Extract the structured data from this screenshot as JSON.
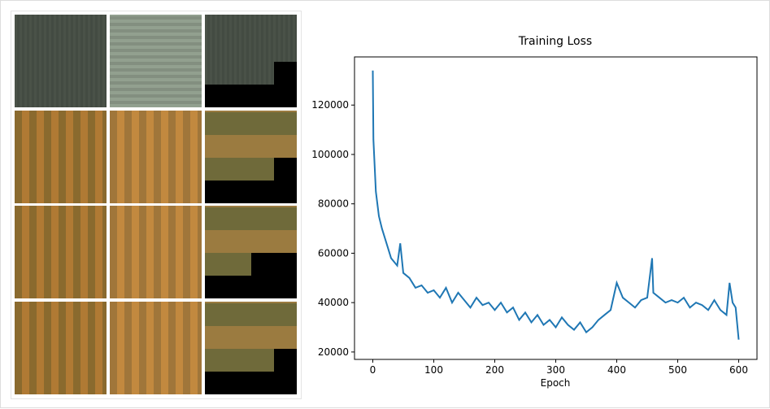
{
  "chart_data": {
    "type": "line",
    "title": "Training Loss",
    "x_label": "Epoch",
    "x": [
      0,
      1,
      5,
      10,
      15,
      20,
      25,
      30,
      40,
      45,
      50,
      60,
      70,
      80,
      90,
      100,
      110,
      120,
      130,
      140,
      150,
      160,
      170,
      180,
      190,
      200,
      210,
      220,
      230,
      240,
      250,
      260,
      270,
      280,
      290,
      300,
      310,
      320,
      330,
      340,
      350,
      360,
      370,
      380,
      390,
      400,
      410,
      420,
      430,
      440,
      450,
      458,
      460,
      470,
      480,
      490,
      500,
      510,
      520,
      530,
      540,
      550,
      560,
      570,
      580,
      585,
      590,
      595,
      600
    ],
    "series": [
      {
        "name": "loss",
        "color": "#1f77b4",
        "values": [
          134000,
          106000,
          85000,
          75000,
          70000,
          66000,
          62000,
          58000,
          55000,
          64000,
          52000,
          50000,
          46000,
          47000,
          44000,
          45000,
          42000,
          46000,
          40000,
          44000,
          41000,
          38000,
          42000,
          39000,
          40000,
          37000,
          40000,
          36000,
          38000,
          33000,
          36000,
          32000,
          35000,
          31000,
          33000,
          30000,
          34000,
          31000,
          29000,
          32000,
          28000,
          30000,
          33000,
          35000,
          37000,
          48000,
          42000,
          40000,
          38000,
          41000,
          42000,
          58000,
          44000,
          42000,
          40000,
          41000,
          40000,
          42000,
          38000,
          40000,
          39000,
          37000,
          41000,
          37000,
          35000,
          48000,
          40000,
          38000,
          25000
        ]
      }
    ],
    "xlim": [
      -30,
      630
    ],
    "ylim": [
      17000,
      139500
    ],
    "xticks": [
      0,
      100,
      200,
      300,
      400,
      500,
      600
    ],
    "yticks": [
      20000,
      40000,
      60000,
      80000,
      100000,
      120000
    ]
  }
}
